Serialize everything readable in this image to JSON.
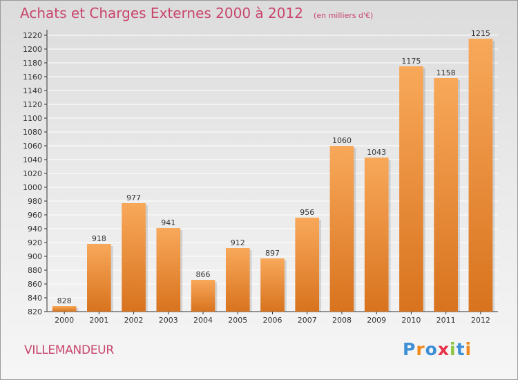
{
  "title": "Achats et Charges Externes 2000 à 2012",
  "subtitle": "(en milliers d'€)",
  "commune": "VILLEMANDEUR",
  "brand": {
    "text": "Proxiti",
    "letter_colors": [
      "#3d8fd6",
      "#f08a1c",
      "#3d8fd6",
      "#e8324a",
      "#8cc63f",
      "#3d8fd6",
      "#f08a1c"
    ]
  },
  "colors": {
    "bar_light": "#f8a85a",
    "bar_dark": "#d8731e",
    "title": "#c8456b",
    "grid": "#ffffff"
  },
  "chart_data": {
    "type": "bar",
    "categories": [
      "2000",
      "2001",
      "2002",
      "2003",
      "2004",
      "2005",
      "2006",
      "2007",
      "2008",
      "2009",
      "2010",
      "2011",
      "2012"
    ],
    "values": [
      828,
      918,
      977,
      941,
      866,
      912,
      897,
      956,
      1060,
      1043,
      1175,
      1158,
      1215
    ],
    "ylim": [
      820,
      1220
    ],
    "yticks": [
      820,
      840,
      860,
      880,
      900,
      920,
      940,
      960,
      980,
      1000,
      1020,
      1040,
      1060,
      1080,
      1100,
      1120,
      1140,
      1160,
      1180,
      1200,
      1220
    ],
    "grid": true,
    "data_labels": true
  }
}
